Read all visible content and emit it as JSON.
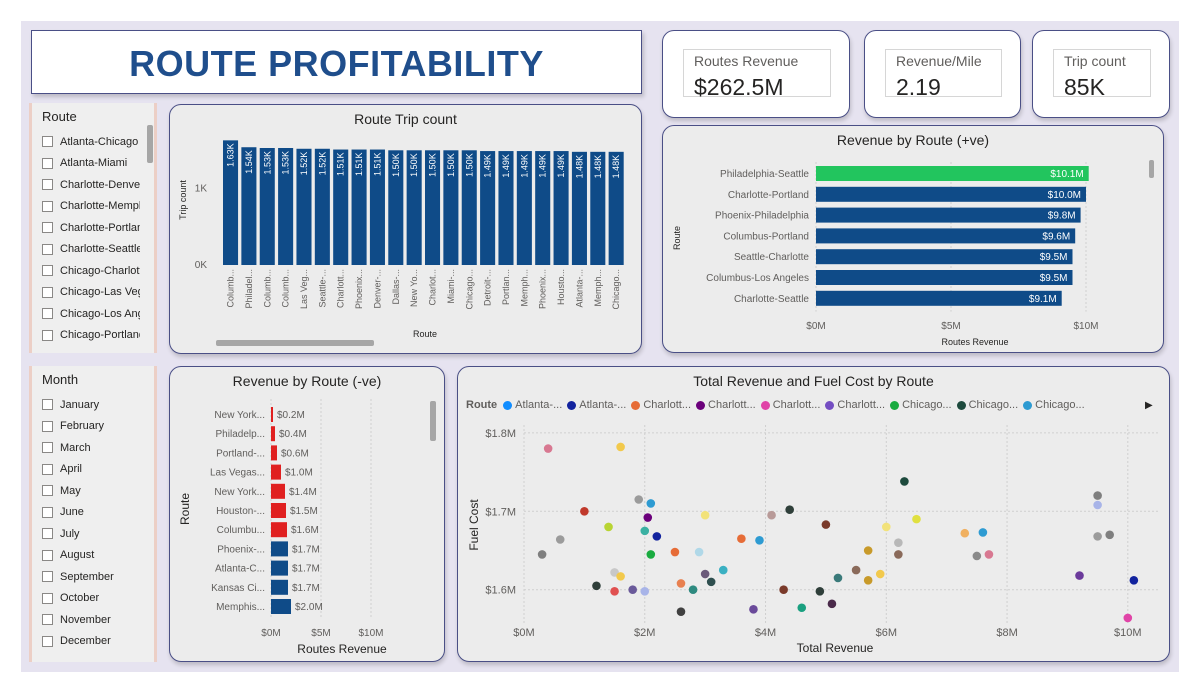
{
  "title": "ROUTE PROFITABILITY",
  "kpis": [
    {
      "label": "Routes Revenue",
      "value": "$262.5M"
    },
    {
      "label": "Revenue/Mile",
      "value": "2.19"
    },
    {
      "label": "Trip count",
      "value": "85K"
    }
  ],
  "route_slicer": {
    "header": "Route",
    "items": [
      "Atlanta-Chicago",
      "Atlanta-Miami",
      "Charlotte-Denver",
      "Charlotte-Memphis",
      "Charlotte-Portland",
      "Charlotte-Seattle",
      "Chicago-Charlotte",
      "Chicago-Las Vegas",
      "Chicago-Los Ang...",
      "Chicago-Portland"
    ]
  },
  "month_slicer": {
    "header": "Month",
    "items": [
      "January",
      "February",
      "March",
      "April",
      "May",
      "June",
      "July",
      "August",
      "September",
      "October",
      "November",
      "December"
    ]
  },
  "colors": {
    "navy": "#0f4b88",
    "green": "#22c55e",
    "red": "#e02020",
    "title_blue": "#1f4e8c",
    "panel_border": "#4a4f86"
  },
  "trip_chart": {
    "title": "Route Trip count",
    "chart_data": {
      "type": "bar",
      "title": "Route Trip count",
      "xlabel": "Route",
      "ylabel": "Trip count",
      "yticks": [
        "0K",
        "1K"
      ],
      "ylim": [
        0,
        1700
      ],
      "categories": [
        "Columb...",
        "Philadel...",
        "Columb...",
        "Columb...",
        "Las Veg...",
        "Seattle-...",
        "Charlott...",
        "Phoenix...",
        "Denver-...",
        "Dallas-...",
        "New Yo...",
        "Charlot...",
        "Miami-...",
        "Chicago...",
        "Detroit-...",
        "Portlan...",
        "Memph...",
        "Phoenix...",
        "Housto...",
        "Atlanta-...",
        "Memph...",
        "Chicago..."
      ],
      "values": [
        1630,
        1540,
        1530,
        1530,
        1520,
        1520,
        1510,
        1510,
        1510,
        1500,
        1500,
        1500,
        1500,
        1500,
        1490,
        1490,
        1490,
        1490,
        1490,
        1480,
        1480,
        1480
      ],
      "labels": [
        "1.63K",
        "1.54K",
        "1.53K",
        "1.53K",
        "1.52K",
        "1.52K",
        "1.51K",
        "1.51K",
        "1.51K",
        "1.50K",
        "1.50K",
        "1.50K",
        "1.50K",
        "1.50K",
        "1.49K",
        "1.49K",
        "1.49K",
        "1.49K",
        "1.49K",
        "1.48K",
        "1.48K",
        "1.48K"
      ]
    }
  },
  "pos_chart": {
    "title": "Revenue by Route (+ve)",
    "chart_data": {
      "type": "bar",
      "orientation": "horizontal",
      "title": "Revenue by Route (+ve)",
      "xlabel": "Routes Revenue",
      "ylabel": "Route",
      "xticks": [
        "$0M",
        "$5M",
        "$10M"
      ],
      "xlim": [
        0,
        10
      ],
      "categories": [
        "Philadelphia-Seattle",
        "Charlotte-Portland",
        "Phoenix-Philadelphia",
        "Columbus-Portland",
        "Seattle-Charlotte",
        "Columbus-Los Angeles",
        "Charlotte-Seattle"
      ],
      "values": [
        10.1,
        10.0,
        9.8,
        9.6,
        9.5,
        9.5,
        9.1
      ],
      "labels": [
        "$10.1M",
        "$10.0M",
        "$9.8M",
        "$9.6M",
        "$9.5M",
        "$9.5M",
        "$9.1M"
      ],
      "highlight_color": "#22c55e"
    }
  },
  "neg_chart": {
    "title": "Revenue by Route (-ve)",
    "chart_data": {
      "type": "bar",
      "orientation": "horizontal",
      "title": "Revenue by Route (-ve)",
      "xlabel": "Routes Revenue",
      "ylabel": "Route",
      "xticks": [
        "$0M",
        "$5M",
        "$10M"
      ],
      "xlim": [
        0,
        10
      ],
      "categories": [
        "New York...",
        "Philadelp...",
        "Portland-...",
        "Las Vegas...",
        "New York...",
        "Houston-...",
        "Columbu...",
        "Phoenix-...",
        "Atlanta-C...",
        "Kansas Ci...",
        "Memphis..."
      ],
      "values": [
        0.2,
        0.4,
        0.6,
        1.0,
        1.4,
        1.5,
        1.6,
        1.7,
        1.7,
        1.7,
        2.0
      ],
      "labels": [
        "$0.2M",
        "$0.4M",
        "$0.6M",
        "$1.0M",
        "$1.4M",
        "$1.5M",
        "$1.6M",
        "$1.7M",
        "$1.7M",
        "$1.7M",
        "$2.0M"
      ],
      "red_count": 7
    }
  },
  "scatter_chart": {
    "title": "Total Revenue and Fuel Cost by Route",
    "legend_title": "Route",
    "legend_items": [
      {
        "label": "Atlanta-...",
        "color": "#118dff"
      },
      {
        "label": "Atlanta-...",
        "color": "#12239e"
      },
      {
        "label": "Charlott...",
        "color": "#e66c37"
      },
      {
        "label": "Charlott...",
        "color": "#6b007b"
      },
      {
        "label": "Charlott...",
        "color": "#e044a7"
      },
      {
        "label": "Charlott...",
        "color": "#744ec2"
      },
      {
        "label": "Chicago...",
        "color": "#1aab40"
      },
      {
        "label": "Chicago...",
        "color": "#1d4a3d"
      },
      {
        "label": "Chicago...",
        "color": "#2e9bd2"
      }
    ],
    "chart_data": {
      "type": "scatter",
      "title": "Total Revenue and Fuel Cost by Route",
      "xlabel": "Total Revenue",
      "ylabel": "Fuel Cost",
      "xticks": [
        "$0M",
        "$2M",
        "$4M",
        "$6M",
        "$8M",
        "$10M"
      ],
      "yticks": [
        "$1.6M",
        "$1.7M",
        "$1.8M"
      ],
      "xlim": [
        0,
        10.5
      ],
      "ylim": [
        1.555,
        1.81
      ],
      "points": [
        [
          0.4,
          1.78,
          "#d87891"
        ],
        [
          1.6,
          1.782,
          "#f2c94c"
        ],
        [
          1.0,
          1.7,
          "#c0392b"
        ],
        [
          0.6,
          1.664,
          "#9b9b9b"
        ],
        [
          0.3,
          1.645,
          "#7f7f7f"
        ],
        [
          1.4,
          1.68,
          "#b8d433"
        ],
        [
          1.9,
          1.715,
          "#9b9b9b"
        ],
        [
          2.1,
          1.71,
          "#2e9bd2"
        ],
        [
          2.05,
          1.692,
          "#6b007b"
        ],
        [
          2.0,
          1.675,
          "#3ab0a2"
        ],
        [
          2.2,
          1.668,
          "#12239e"
        ],
        [
          2.1,
          1.645,
          "#1aab40"
        ],
        [
          2.5,
          1.648,
          "#e66c37"
        ],
        [
          2.9,
          1.648,
          "#b0d8e8"
        ],
        [
          3.0,
          1.695,
          "#f2e27a"
        ],
        [
          3.6,
          1.665,
          "#e66c37"
        ],
        [
          3.9,
          1.663,
          "#2e9bd2"
        ],
        [
          4.1,
          1.695,
          "#b89a98"
        ],
        [
          4.4,
          1.702,
          "#2f3f3a"
        ],
        [
          5.0,
          1.683,
          "#7a3a2a"
        ],
        [
          5.7,
          1.65,
          "#c89a2a"
        ],
        [
          6.0,
          1.68,
          "#f2e27a"
        ],
        [
          6.2,
          1.66,
          "#b8b8b8"
        ],
        [
          6.3,
          1.738,
          "#1d4a3d"
        ],
        [
          6.5,
          1.69,
          "#e0e040"
        ],
        [
          6.2,
          1.645,
          "#8a6a5a"
        ],
        [
          7.3,
          1.672,
          "#f0b060"
        ],
        [
          7.6,
          1.673,
          "#2e9bd2"
        ],
        [
          7.5,
          1.643,
          "#8a8a8a"
        ],
        [
          7.7,
          1.645,
          "#d87891"
        ],
        [
          9.5,
          1.72,
          "#7f7f7f"
        ],
        [
          9.5,
          1.708,
          "#a8b4e8"
        ],
        [
          9.5,
          1.668,
          "#9b9b9b"
        ],
        [
          9.7,
          1.67,
          "#7f7f7f"
        ],
        [
          9.2,
          1.618,
          "#6b3a9b"
        ],
        [
          10.1,
          1.612,
          "#12239e"
        ],
        [
          10.0,
          1.564,
          "#e044a7"
        ],
        [
          1.5,
          1.622,
          "#c8c8c8"
        ],
        [
          1.6,
          1.617,
          "#f2c94c"
        ],
        [
          1.2,
          1.605,
          "#2f3f3a"
        ],
        [
          1.5,
          1.598,
          "#e05050"
        ],
        [
          1.8,
          1.6,
          "#6a5a9a"
        ],
        [
          2.0,
          1.598,
          "#a8b4e8"
        ],
        [
          2.6,
          1.608,
          "#e88050"
        ],
        [
          3.0,
          1.62,
          "#6b5a7a"
        ],
        [
          3.3,
          1.625,
          "#3ab0c2"
        ],
        [
          2.8,
          1.6,
          "#2e8a80"
        ],
        [
          3.1,
          1.61,
          "#2f4f4f"
        ],
        [
          4.3,
          1.6,
          "#7a3a2a"
        ],
        [
          4.6,
          1.577,
          "#1aa080"
        ],
        [
          4.9,
          1.598,
          "#2f3f3a"
        ],
        [
          5.2,
          1.615,
          "#3a7a7a"
        ],
        [
          5.5,
          1.625,
          "#8a6a5a"
        ],
        [
          5.7,
          1.612,
          "#c89a2a"
        ],
        [
          5.9,
          1.62,
          "#f2c94c"
        ],
        [
          2.6,
          1.572,
          "#404040"
        ],
        [
          3.8,
          1.575,
          "#6a4a9a"
        ],
        [
          5.1,
          1.582,
          "#4a2a4a"
        ]
      ]
    }
  }
}
